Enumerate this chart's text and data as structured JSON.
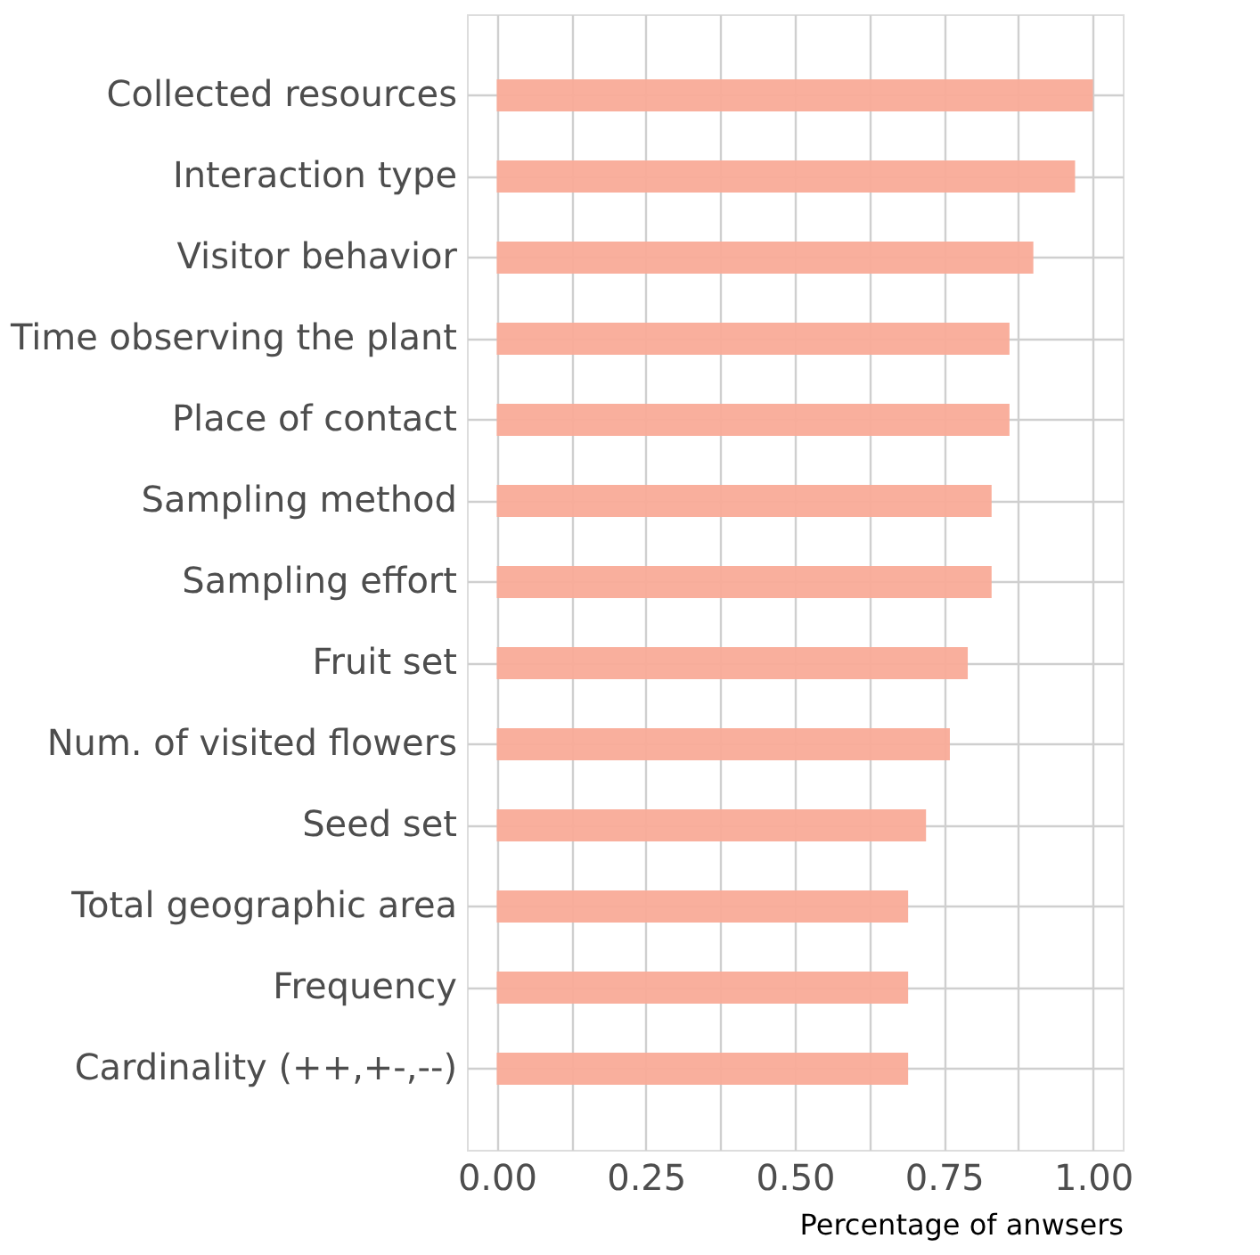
{
  "chart_data": {
    "type": "bar",
    "orientation": "horizontal",
    "xlabel": "Percentage of anwsers",
    "categories": [
      "Collected resources",
      "Interaction type",
      "Visitor behavior",
      "Time observing the plant",
      "Place of contact",
      "Sampling method",
      "Sampling effort",
      "Fruit set",
      "Num. of visited flowers",
      "Seed set",
      "Total geographic area",
      "Frequency",
      "Cardinality (++,+-,--)"
    ],
    "values": [
      1.0,
      0.97,
      0.9,
      0.86,
      0.86,
      0.83,
      0.83,
      0.79,
      0.76,
      0.72,
      0.69,
      0.69,
      0.69
    ],
    "color": "#f9ab98",
    "xlim": [
      -0.05,
      1.05
    ],
    "xticks": [
      {
        "value": 0,
        "label": "0.00"
      },
      {
        "value": 0.125,
        "label": null
      },
      {
        "value": 0.25,
        "label": "0.25"
      },
      {
        "value": 0.375,
        "label": null
      },
      {
        "value": 0.5,
        "label": "0.50"
      },
      {
        "value": 0.625,
        "label": null
      },
      {
        "value": 0.75,
        "label": "0.75"
      },
      {
        "value": 0.875,
        "label": null
      },
      {
        "value": 1,
        "label": "1.00"
      }
    ],
    "grid": true
  }
}
